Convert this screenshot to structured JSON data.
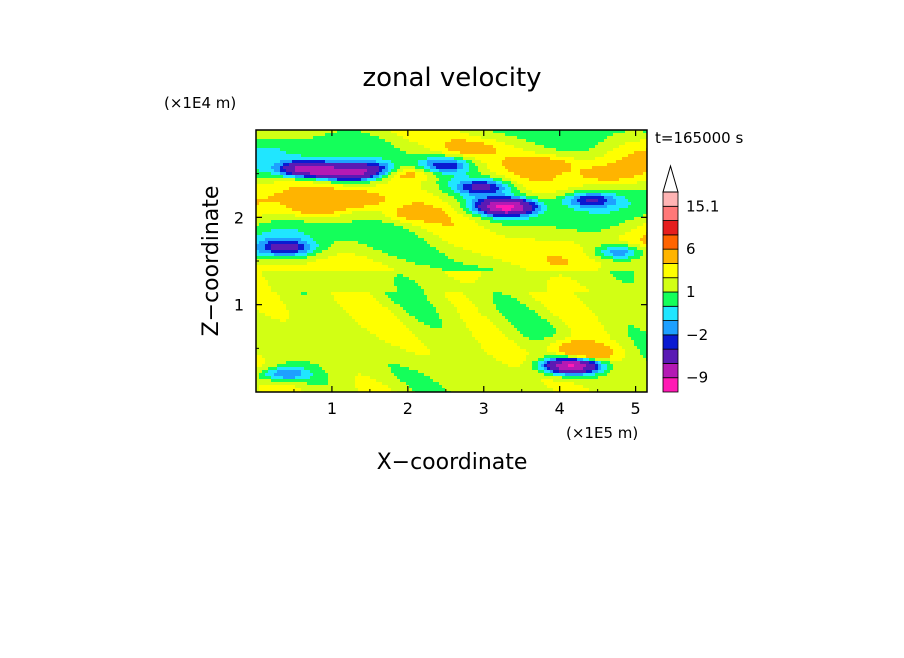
{
  "chart_data": {
    "type": "heatmap",
    "title": "zonal velocity",
    "xlabel": "X−coordinate",
    "ylabel": "Z−coordinate",
    "x_unit": "(×1E5 m)",
    "y_unit": "(×1E4 m)",
    "time_label": "t=165000 s",
    "xlim": [
      0,
      5.15
    ],
    "ylim": [
      0,
      3.0
    ],
    "x_ticks": [
      1,
      2,
      3,
      4,
      5
    ],
    "y_ticks": [
      1,
      2
    ],
    "colorbar": {
      "levels": [
        -12,
        -9,
        -6,
        -3,
        -2,
        -1,
        0,
        1,
        2,
        3,
        6,
        9,
        12,
        15.1
      ],
      "labeled": [
        "15.1",
        "6",
        "1",
        "−2",
        "−9"
      ],
      "colors": [
        "#ff1ab4",
        "#b41ab4",
        "#5a1ab4",
        "#0a1ad2",
        "#1ea0ff",
        "#20e6ff",
        "#14ff5a",
        "#d2ff14",
        "#ffff00",
        "#ffb400",
        "#ff6400",
        "#e61e1e",
        "#ff7878",
        "#ffb4b4"
      ],
      "over_color": "#ffffff"
    },
    "features": [
      {
        "x": 0.7,
        "z": 2.55,
        "v": -8
      },
      {
        "x": 1.2,
        "z": 2.5,
        "v": -6
      },
      {
        "x": 3.3,
        "z": 2.12,
        "v": -9
      },
      {
        "x": 1.5,
        "z": 2.55,
        "v": -2.5
      },
      {
        "x": 2.5,
        "z": 2.6,
        "v": -2.5
      },
      {
        "x": 3.0,
        "z": 2.35,
        "v": -2.5
      },
      {
        "x": 0.4,
        "z": 1.65,
        "v": -2.5
      },
      {
        "x": 4.4,
        "z": 2.2,
        "v": -2.5
      },
      {
        "x": 4.8,
        "z": 1.6,
        "v": -2.5
      },
      {
        "x": 0.8,
        "z": 2.1,
        "v": 3.5
      },
      {
        "x": 1.3,
        "z": 2.2,
        "v": 4
      },
      {
        "x": 2.0,
        "z": 2.5,
        "v": 4
      },
      {
        "x": 2.0,
        "z": 2.03,
        "v": 3
      },
      {
        "x": 2.8,
        "z": 2.8,
        "v": 3
      },
      {
        "x": 3.9,
        "z": 2.62,
        "v": 3
      },
      {
        "x": 4.6,
        "z": 2.5,
        "v": 3
      },
      {
        "x": 0.35,
        "z": 0.2,
        "v": -2.5
      },
      {
        "x": 4.15,
        "z": 0.3,
        "v": -9
      },
      {
        "x": 4.3,
        "z": 0.45,
        "v": 6
      },
      {
        "x": 4.05,
        "z": 0.55,
        "v": 3
      }
    ]
  }
}
